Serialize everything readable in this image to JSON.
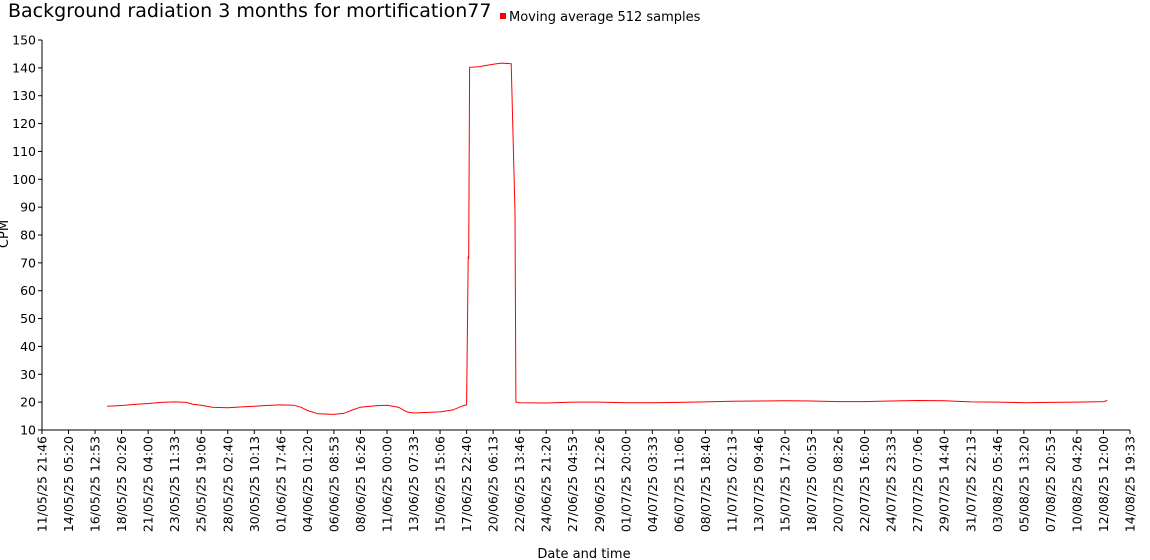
{
  "chart_data": {
    "type": "line",
    "title": "Background radiation 3 months for mortification77",
    "xlabel": "Date and time",
    "ylabel": "CPM",
    "ylim": [
      10,
      150
    ],
    "yticks": [
      10,
      20,
      30,
      40,
      50,
      60,
      70,
      80,
      90,
      100,
      110,
      120,
      130,
      140,
      150
    ],
    "xticks": [
      "11/05/25 21:46",
      "14/05/25 05:20",
      "16/05/25 12:53",
      "18/05/25 20:26",
      "21/05/25 04:00",
      "23/05/25 11:33",
      "25/05/25 19:06",
      "28/05/25 02:40",
      "30/05/25 10:13",
      "01/06/25 17:46",
      "04/06/25 01:20",
      "06/06/25 08:53",
      "08/06/25 16:26",
      "11/06/25 00:00",
      "13/06/25 07:33",
      "15/06/25 15:06",
      "17/06/25 22:40",
      "20/06/25 06:13",
      "22/06/25 13:46",
      "24/06/25 21:20",
      "27/06/25 04:53",
      "29/06/25 12:26",
      "01/07/25 20:00",
      "04/07/25 03:33",
      "06/07/25 11:06",
      "08/07/25 18:40",
      "11/07/25 02:13",
      "13/07/25 09:46",
      "15/07/25 17:20",
      "18/07/25 00:53",
      "20/07/25 08:26",
      "22/07/25 16:00",
      "24/07/25 23:33",
      "27/07/25 07:06",
      "29/07/25 14:40",
      "31/07/25 22:13",
      "03/08/25 05:46",
      "05/08/25 13:20",
      "07/08/25 20:53",
      "10/08/25 04:26",
      "12/08/25 12:00",
      "14/08/25 19:33"
    ],
    "grid": false,
    "legend_position": "top",
    "series": [
      {
        "name": "Moving average 512 samples",
        "color": "#ff0000",
        "points": [
          [
            "17/05/25 14:00",
            18.5
          ],
          [
            "18/05/25 20:26",
            18.8
          ],
          [
            "20/05/25 00:00",
            19.2
          ],
          [
            "21/05/25 04:00",
            19.5
          ],
          [
            "22/05/25 08:00",
            19.9
          ],
          [
            "23/05/25 11:33",
            20.1
          ],
          [
            "24/05/25 12:00",
            19.9
          ],
          [
            "25/05/25 00:00",
            19.3
          ],
          [
            "25/05/25 19:06",
            18.9
          ],
          [
            "26/05/25 18:00",
            18.2
          ],
          [
            "28/05/25 02:40",
            18.0
          ],
          [
            "29/05/25 08:00",
            18.3
          ],
          [
            "30/05/25 10:13",
            18.5
          ],
          [
            "31/05/25 10:00",
            18.8
          ],
          [
            "01/06/25 17:46",
            19.0
          ],
          [
            "02/06/25 20:00",
            18.9
          ],
          [
            "03/06/25 12:00",
            18.2
          ],
          [
            "04/06/25 01:20",
            17.0
          ],
          [
            "05/06/25 00:00",
            15.8
          ],
          [
            "06/06/25 08:53",
            15.6
          ],
          [
            "07/06/25 06:00",
            16.0
          ],
          [
            "08/06/25 00:00",
            17.2
          ],
          [
            "08/06/25 16:26",
            18.2
          ],
          [
            "10/06/25 00:00",
            18.7
          ],
          [
            "11/06/25 00:00",
            18.9
          ],
          [
            "12/06/25 00:00",
            18.2
          ],
          [
            "12/06/25 18:00",
            16.5
          ],
          [
            "13/06/25 07:33",
            16.1
          ],
          [
            "15/06/25 15:06",
            16.5
          ],
          [
            "16/06/25 18:00",
            17.2
          ],
          [
            "17/06/25 12:00",
            18.5
          ],
          [
            "17/06/25 22:00",
            19.0
          ],
          [
            "17/06/25 22:40",
            19.2
          ],
          [
            "18/06/25 02:00",
            72.0
          ],
          [
            "18/06/25 03:00",
            71.8
          ],
          [
            "18/06/25 05:00",
            140.2
          ],
          [
            "19/06/25 00:00",
            140.4
          ],
          [
            "20/06/25 06:13",
            141.3
          ],
          [
            "21/06/25 00:00",
            141.7
          ],
          [
            "21/06/25 20:00",
            141.5
          ],
          [
            "22/06/25 04:00",
            88.0
          ],
          [
            "22/06/25 06:00",
            20.0
          ],
          [
            "22/06/25 13:46",
            19.8
          ],
          [
            "24/06/25 21:20",
            19.7
          ],
          [
            "27/06/25 04:53",
            20.0
          ],
          [
            "29/06/25 12:26",
            20.0
          ],
          [
            "01/07/25 20:00",
            19.8
          ],
          [
            "04/07/25 03:33",
            19.8
          ],
          [
            "06/07/25 11:06",
            19.9
          ],
          [
            "08/07/25 18:40",
            20.1
          ],
          [
            "11/07/25 02:13",
            20.3
          ],
          [
            "13/07/25 09:46",
            20.4
          ],
          [
            "15/07/25 17:20",
            20.5
          ],
          [
            "18/07/25 00:53",
            20.4
          ],
          [
            "20/07/25 08:26",
            20.2
          ],
          [
            "22/07/25 16:00",
            20.2
          ],
          [
            "24/07/25 23:33",
            20.4
          ],
          [
            "27/07/25 07:06",
            20.6
          ],
          [
            "29/07/25 14:40",
            20.5
          ],
          [
            "31/07/25 22:13",
            20.1
          ],
          [
            "03/08/25 05:46",
            20.0
          ],
          [
            "05/08/25 13:20",
            19.8
          ],
          [
            "07/08/25 20:53",
            19.9
          ],
          [
            "10/08/25 04:26",
            20.0
          ],
          [
            "12/08/25 12:00",
            20.2
          ],
          [
            "12/08/25 20:00",
            20.6
          ]
        ]
      }
    ]
  }
}
